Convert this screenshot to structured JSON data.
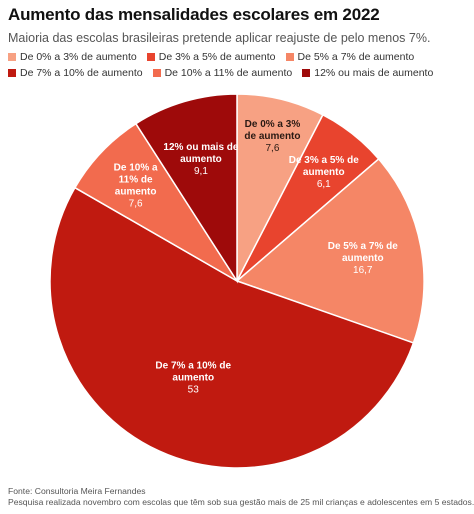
{
  "chart_data": {
    "type": "pie",
    "title": "Aumento das mensalidades escolares em 2022",
    "subtitle": "Maioria das escolas brasileiras pretende aplicar reajuste de pelo menos 7%.",
    "legend_position": "top",
    "slices": [
      {
        "name": "De 0% a 3% de aumento",
        "label_line1": "De 0% a 3%",
        "label_line2": "de aumento",
        "value": 7.6,
        "value_label": "7,6",
        "color": "#f7a183"
      },
      {
        "name": "De 3% a 5% de aumento",
        "label_line1": "De 3% a 5% de",
        "label_line2": "aumento",
        "value": 6.1,
        "value_label": "6,1",
        "color": "#e8442e"
      },
      {
        "name": "De 5% a 7% de aumento",
        "label_line1": "De 5% a 7% de",
        "label_line2": "aumento",
        "value": 16.7,
        "value_label": "16,7",
        "color": "#f58666"
      },
      {
        "name": "De 7% a 10% de aumento",
        "label_line1": "De 7% a 10% de",
        "label_line2": "aumento",
        "value": 53,
        "value_label": "53",
        "color": "#c01a10"
      },
      {
        "name": "De 10% a 11% de aumento",
        "label_line1": "De 10% a",
        "label_line2": "11% de",
        "label_line3": "aumento",
        "value": 7.6,
        "value_label": "7,6",
        "color": "#f26b4e"
      },
      {
        "name": "12% ou mais de aumento",
        "label_line1": "12% ou mais de",
        "label_line2": "aumento",
        "value": 9.1,
        "value_label": "9,1",
        "color": "#9e0a0a"
      }
    ]
  },
  "footer": {
    "source": "Fonte: Consultoria Meira Fernandes",
    "note": "Pesquisa realizada novembro com escolas que têm sob sua gestão mais de 25 mil crianças e adolescentes em 5 estados."
  }
}
